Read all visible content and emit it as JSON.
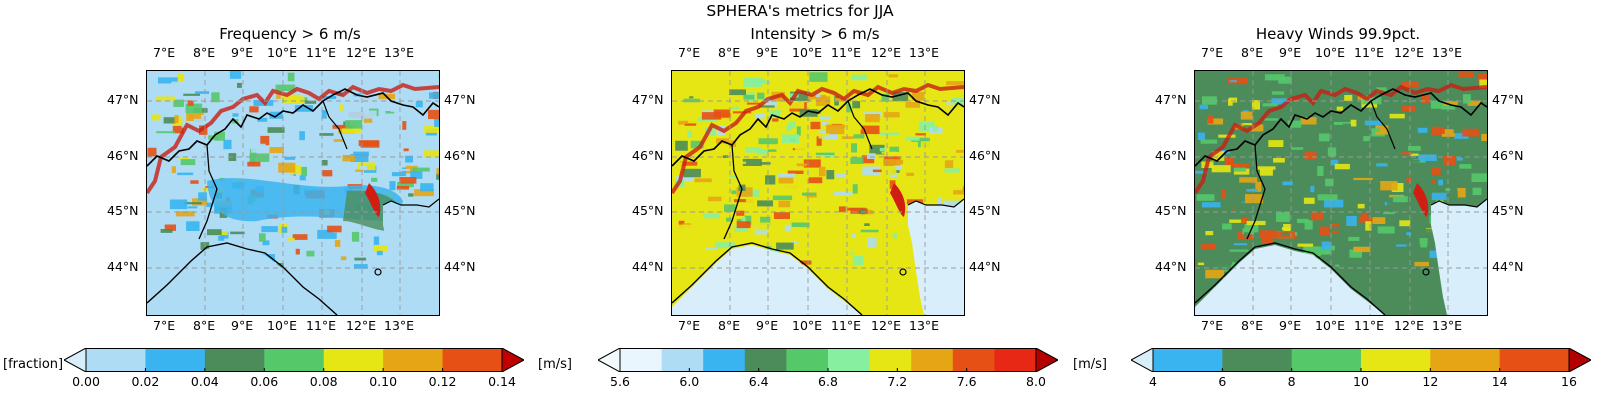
{
  "suptitle": "SPHERA's metrics for JJA",
  "panels": [
    {
      "title": "Frequency > 6 m/s"
    },
    {
      "title": "Intensity > 6 m/s"
    },
    {
      "title": "Heavy Winds 99.9pct."
    }
  ],
  "lon_labels": [
    "7°E",
    "8°E",
    "9°E",
    "10°E",
    "11°E",
    "12°E",
    "13°E"
  ],
  "lat_labels": [
    "47°N",
    "46°N",
    "45°N",
    "44°N"
  ],
  "colorbars": [
    {
      "left_label": "[fraction]",
      "units": "[m/s]",
      "ticks": [
        "0.00",
        "0.02",
        "0.04",
        "0.06",
        "0.08",
        "0.10",
        "0.12",
        "0.14"
      ],
      "colors": [
        "#aedcf5",
        "#39b4f0",
        "#4b8c5a",
        "#55c86a",
        "#e6e614",
        "#e6a514",
        "#e65014"
      ],
      "under": "#d8eefa",
      "over": "#c00000"
    },
    {
      "left_label": "",
      "units": "[m/s]",
      "ticks": [
        "5.6",
        "6.0",
        "6.4",
        "6.8",
        "7.2",
        "7.6",
        "8.0"
      ],
      "colors": [
        "#eaf6fd",
        "#aedcf5",
        "#39b4f0",
        "#4b8c5a",
        "#55c86a",
        "#86f0a0",
        "#e6e614",
        "#e6a514",
        "#e65014",
        "#e62814"
      ],
      "under": "#f4fbff",
      "over": "#b40000"
    },
    {
      "left_label": "",
      "units": "[m/s]",
      "ticks": [
        "4",
        "6",
        "8",
        "10",
        "12",
        "14",
        "16"
      ],
      "colors": [
        "#39b4f0",
        "#4b8c5a",
        "#55c86a",
        "#e6e614",
        "#e6a514",
        "#e65014"
      ],
      "under": "#d8eefa",
      "over": "#b40000"
    }
  ]
}
